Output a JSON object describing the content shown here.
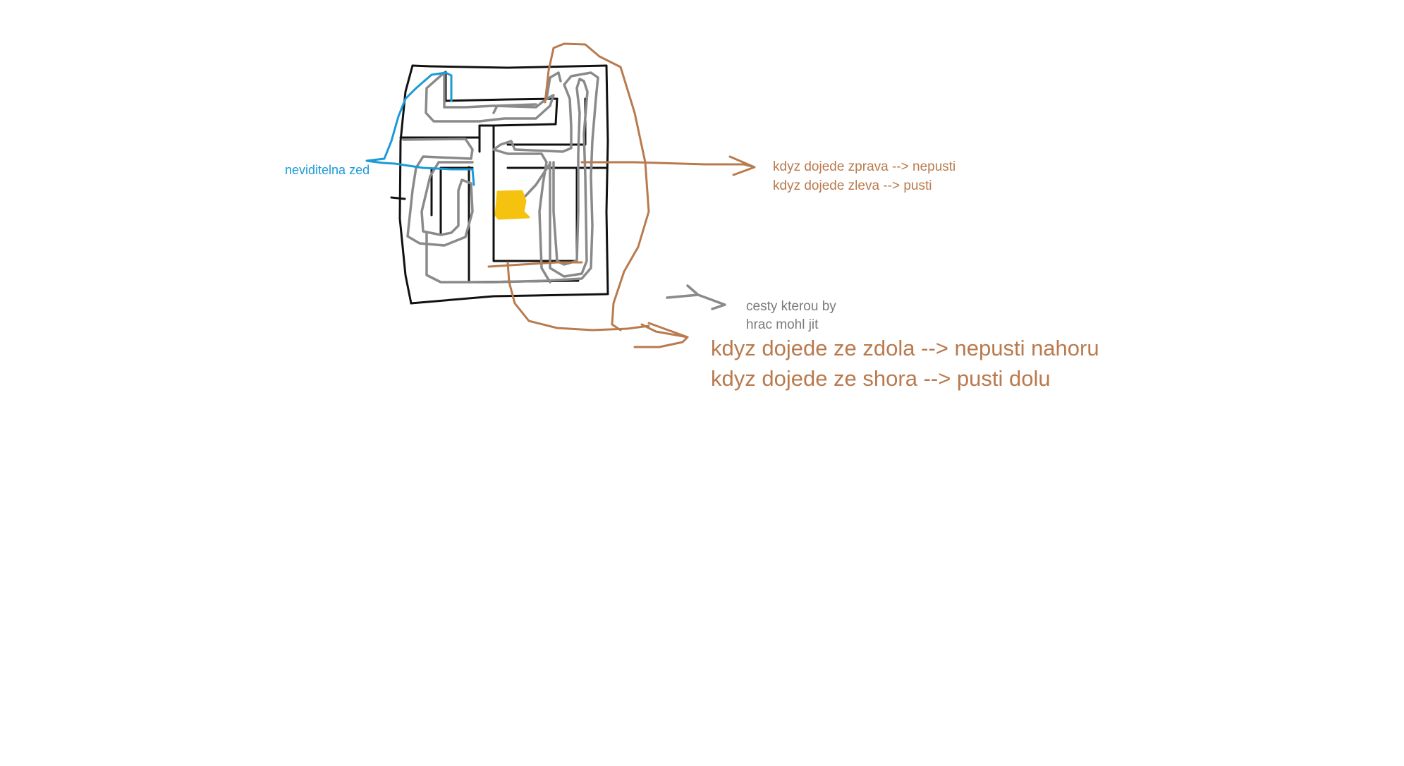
{
  "annotations": {
    "invisible_wall": "neviditelna zed",
    "right_side_1": "kdyz dojede zprava --> nepusti",
    "right_side_2": "kdyz dojede zleva --> pusti",
    "player_paths_1": "cesty kterou by",
    "player_paths_2": "hrac mohl jit",
    "bottom_1": "kdyz dojede ze zdola --> nepusti nahoru",
    "bottom_2": "kdyz dojede ze shora --> pusti dolu"
  },
  "colors": {
    "maze_walls": "#111111",
    "player_paths": "#8a8a8a",
    "invisible_wall": "#1b9ad6",
    "one_way_doors": "#b97a4e",
    "goal": "#f5c20f"
  },
  "icons": {
    "goal": "yellow-square",
    "arrows": "hand-drawn-arrow"
  }
}
